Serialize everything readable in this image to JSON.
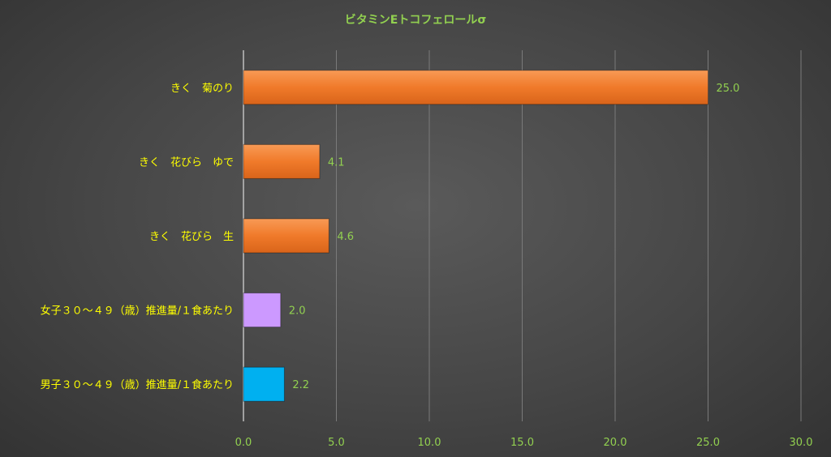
{
  "chart_data": {
    "type": "bar",
    "orientation": "horizontal",
    "title": "ビタミンEトコフェロールσ",
    "categories": [
      "きく　菊のり",
      "きく　花びら　ゆで",
      "きく　花びら　生",
      "女子３０～４９（歳）推進量/１食あたり",
      "男子３０～４９（歳）推進量/１食あたり"
    ],
    "values": [
      25.0,
      4.1,
      4.6,
      2.0,
      2.2
    ],
    "value_labels": [
      "25.0",
      "4.1",
      "4.6",
      "2.0",
      "2.2"
    ],
    "bar_colors": [
      "#F07A2A",
      "#F07A2A",
      "#F07A2A",
      "#CC99FF",
      "#00B0F0"
    ],
    "xlim": [
      0,
      30
    ],
    "x_ticks": [
      0,
      5,
      10,
      15,
      20,
      25,
      30
    ],
    "x_tick_labels": [
      "0.0",
      "5.0",
      "10.0",
      "15.0",
      "20.0",
      "25.0",
      "30.0"
    ],
    "grid": "vertical",
    "legend": "none"
  },
  "colors": {
    "title": "#92D050",
    "category_label": "#FFFF00",
    "tick_label": "#92D050",
    "data_label": "#92D050",
    "grid": "#7a7a7a",
    "axis": "#bfbfbf"
  }
}
